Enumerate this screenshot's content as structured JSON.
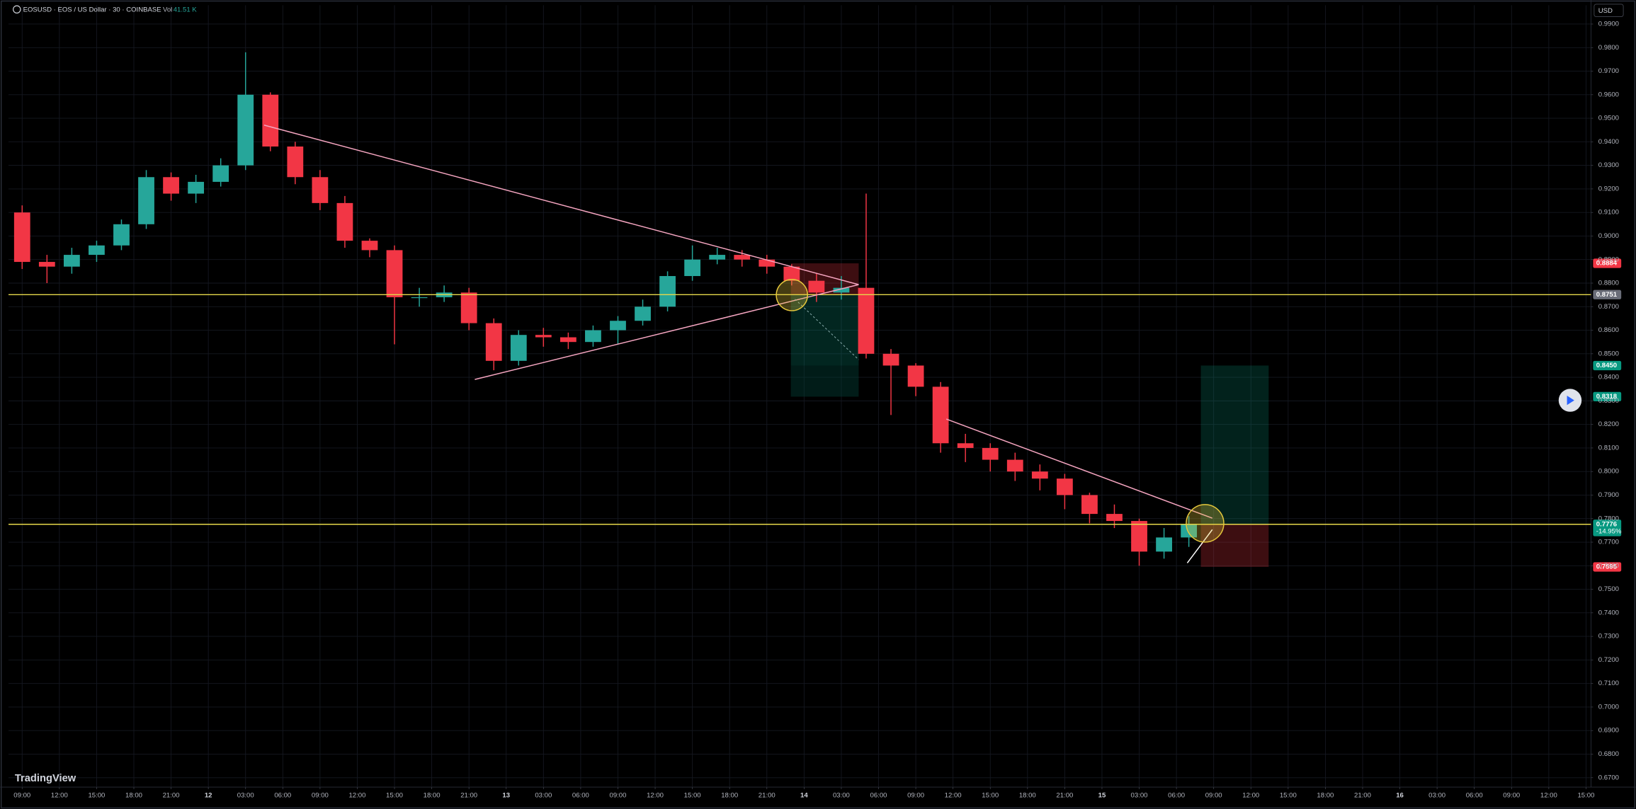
{
  "header": {
    "symbol": "EOSUSD · EOS / US Dollar · 30 · COINBASE",
    "volume_label": "Vol",
    "volume": "41.51 K"
  },
  "currency": "USD",
  "logo": "TradingView",
  "chart_data": {
    "type": "candlestick",
    "up_color": "#26a69a",
    "down_color": "#f23645",
    "grid": true,
    "x": [
      9,
      11,
      13,
      15,
      17,
      19,
      21,
      23,
      25,
      27,
      29,
      31,
      33,
      35,
      37,
      39,
      41,
      43,
      45,
      47,
      49,
      51,
      53,
      55,
      57,
      59,
      61,
      63,
      65,
      67,
      69,
      71,
      73,
      75,
      77,
      79,
      81,
      83,
      85,
      87,
      89,
      91,
      93,
      95,
      97,
      99,
      101,
      103
    ],
    "open": [
      0.91,
      0.889,
      0.887,
      0.892,
      0.896,
      0.905,
      0.925,
      0.918,
      0.923,
      0.93,
      0.96,
      0.938,
      0.925,
      0.914,
      0.898,
      0.894,
      0.874,
      0.874,
      0.876,
      0.863,
      0.847,
      0.858,
      0.857,
      0.855,
      0.86,
      0.864,
      0.87,
      0.883,
      0.89,
      0.892,
      0.89,
      0.887,
      0.881,
      0.876,
      0.878,
      0.85,
      0.845,
      0.836,
      0.812,
      0.81,
      0.805,
      0.8,
      0.797,
      0.79,
      0.782,
      0.779,
      0.766,
      0.772
    ],
    "high": [
      0.913,
      0.892,
      0.895,
      0.898,
      0.907,
      0.928,
      0.927,
      0.926,
      0.933,
      0.978,
      0.961,
      0.94,
      0.928,
      0.917,
      0.899,
      0.896,
      0.878,
      0.879,
      0.878,
      0.865,
      0.86,
      0.861,
      0.859,
      0.862,
      0.866,
      0.873,
      0.885,
      0.896,
      0.895,
      0.894,
      0.892,
      0.888,
      0.884,
      0.883,
      0.918,
      0.852,
      0.846,
      0.838,
      0.816,
      0.812,
      0.808,
      0.803,
      0.799,
      0.791,
      0.786,
      0.78,
      0.776,
      0.781
    ],
    "low": [
      0.886,
      0.88,
      0.884,
      0.889,
      0.894,
      0.903,
      0.915,
      0.914,
      0.921,
      0.928,
      0.936,
      0.922,
      0.911,
      0.895,
      0.891,
      0.854,
      0.87,
      0.872,
      0.86,
      0.843,
      0.845,
      0.853,
      0.852,
      0.853,
      0.854,
      0.862,
      0.868,
      0.881,
      0.888,
      0.887,
      0.884,
      0.879,
      0.872,
      0.873,
      0.848,
      0.824,
      0.832,
      0.808,
      0.804,
      0.8,
      0.796,
      0.792,
      0.784,
      0.778,
      0.776,
      0.76,
      0.763,
      0.768
    ],
    "close": [
      0.889,
      0.887,
      0.892,
      0.896,
      0.905,
      0.925,
      0.918,
      0.923,
      0.93,
      0.96,
      0.938,
      0.925,
      0.914,
      0.898,
      0.894,
      0.874,
      0.874,
      0.876,
      0.863,
      0.847,
      0.858,
      0.857,
      0.855,
      0.86,
      0.864,
      0.87,
      0.883,
      0.89,
      0.892,
      0.89,
      0.887,
      0.881,
      0.876,
      0.878,
      0.85,
      0.845,
      0.836,
      0.812,
      0.81,
      0.805,
      0.8,
      0.797,
      0.79,
      0.782,
      0.779,
      0.766,
      0.772,
      0.7776
    ],
    "xlim": [
      7.9,
      135.4
    ],
    "xticks": [
      {
        "value": 9,
        "label": "09:00"
      },
      {
        "value": 12,
        "label": "12:00"
      },
      {
        "value": 15,
        "label": "15:00"
      },
      {
        "value": 18,
        "label": "18:00"
      },
      {
        "value": 21,
        "label": "21:00"
      },
      {
        "value": 24,
        "label": "12"
      },
      {
        "value": 27,
        "label": "03:00"
      },
      {
        "value": 30,
        "label": "06:00"
      },
      {
        "value": 33,
        "label": "09:00"
      },
      {
        "value": 36,
        "label": "12:00"
      },
      {
        "value": 39,
        "label": "15:00"
      },
      {
        "value": 42,
        "label": "18:00"
      },
      {
        "value": 45,
        "label": "21:00"
      },
      {
        "value": 48,
        "label": "13"
      },
      {
        "value": 51,
        "label": "03:00"
      },
      {
        "value": 54,
        "label": "06:00"
      },
      {
        "value": 57,
        "label": "09:00"
      },
      {
        "value": 60,
        "label": "12:00"
      },
      {
        "value": 63,
        "label": "15:00"
      },
      {
        "value": 66,
        "label": "18:00"
      },
      {
        "value": 69,
        "label": "21:00"
      },
      {
        "value": 72,
        "label": "14"
      },
      {
        "value": 75,
        "label": "03:00"
      },
      {
        "value": 78,
        "label": "06:00"
      },
      {
        "value": 81,
        "label": "09:00"
      },
      {
        "value": 84,
        "label": "12:00"
      },
      {
        "value": 87,
        "label": "15:00"
      },
      {
        "value": 90,
        "label": "18:00"
      },
      {
        "value": 93,
        "label": "21:00"
      },
      {
        "value": 96,
        "label": "15"
      },
      {
        "value": 99,
        "label": "03:00"
      },
      {
        "value": 102,
        "label": "06:00"
      },
      {
        "value": 105,
        "label": "09:00"
      },
      {
        "value": 108,
        "label": "12:00"
      },
      {
        "value": 111,
        "label": "15:00"
      },
      {
        "value": 114,
        "label": "18:00"
      },
      {
        "value": 117,
        "label": "21:00"
      },
      {
        "value": 120,
        "label": "16"
      },
      {
        "value": 123,
        "label": "03:00"
      },
      {
        "value": 126,
        "label": "06:00"
      },
      {
        "value": 129,
        "label": "09:00"
      },
      {
        "value": 132,
        "label": "12:00"
      },
      {
        "value": 135,
        "label": "15:00"
      }
    ],
    "ylim": [
      0.666,
      0.998
    ],
    "yticks": [
      {
        "value": 0.67,
        "label": "0.6700"
      },
      {
        "value": 0.68,
        "label": "0.6800"
      },
      {
        "value": 0.69,
        "label": "0.6900"
      },
      {
        "value": 0.7,
        "label": "0.7000"
      },
      {
        "value": 0.71,
        "label": "0.7100"
      },
      {
        "value": 0.72,
        "label": "0.7200"
      },
      {
        "value": 0.73,
        "label": "0.7300"
      },
      {
        "value": 0.74,
        "label": "0.7400"
      },
      {
        "value": 0.75,
        "label": "0.7500"
      },
      {
        "value": 0.76,
        "label": "0.7600"
      },
      {
        "value": 0.77,
        "label": "0.7700"
      },
      {
        "value": 0.78,
        "label": "0.7800"
      },
      {
        "value": 0.79,
        "label": "0.7900"
      },
      {
        "value": 0.8,
        "label": "0.8000"
      },
      {
        "value": 0.81,
        "label": "0.8100"
      },
      {
        "value": 0.82,
        "label": "0.8200"
      },
      {
        "value": 0.83,
        "label": "0.8300"
      },
      {
        "value": 0.84,
        "label": "0.8400"
      },
      {
        "value": 0.85,
        "label": "0.8500"
      },
      {
        "value": 0.86,
        "label": "0.8600"
      },
      {
        "value": 0.87,
        "label": "0.8700"
      },
      {
        "value": 0.88,
        "label": "0.8800"
      },
      {
        "value": 0.89,
        "label": "0.8900"
      },
      {
        "value": 0.9,
        "label": "0.9000"
      },
      {
        "value": 0.91,
        "label": "0.9100"
      },
      {
        "value": 0.92,
        "label": "0.9200"
      },
      {
        "value": 0.93,
        "label": "0.9300"
      },
      {
        "value": 0.94,
        "label": "0.9400"
      },
      {
        "value": 0.95,
        "label": "0.9500"
      },
      {
        "value": 0.96,
        "label": "0.9600"
      },
      {
        "value": 0.97,
        "label": "0.9700"
      },
      {
        "value": 0.98,
        "label": "0.9800"
      },
      {
        "value": 0.99,
        "label": "0.9900"
      }
    ],
    "price_lines": [
      {
        "value": 0.8751,
        "color": "#e6d84a"
      },
      {
        "value": 0.7776,
        "color": "#e6d84a"
      }
    ],
    "price_labels": [
      {
        "value": 0.8884,
        "label": "0.8884",
        "color": "#f23645"
      },
      {
        "value": 0.8751,
        "label": "0.8751",
        "color": "#6a6d78"
      },
      {
        "value": 0.845,
        "label": "0.8450",
        "color": "#089981"
      },
      {
        "value": 0.8318,
        "label": "0.8318",
        "color": "#089981"
      },
      {
        "value": 0.7776,
        "label": "0.7776",
        "color": "#089981",
        "change": {
          "value": -14.95,
          "label": "-14.95%"
        }
      },
      {
        "value": 0.7595,
        "label": "0.7595",
        "color": "#f23645"
      }
    ]
  }
}
